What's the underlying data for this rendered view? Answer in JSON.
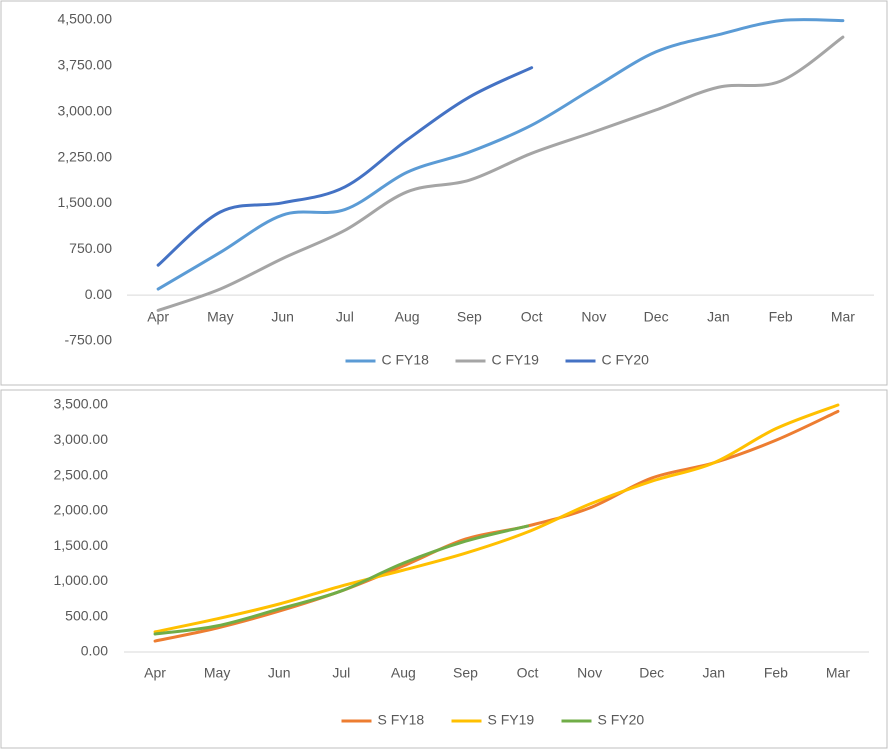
{
  "chart_data": [
    {
      "type": "line",
      "categories": [
        "Apr",
        "May",
        "Jun",
        "Jul",
        "Aug",
        "Sep",
        "Oct",
        "Nov",
        "Dec",
        "Jan",
        "Feb",
        "Mar"
      ],
      "series": [
        {
          "name": "C FY18",
          "color": "#5b9bd5",
          "values": [
            100,
            700,
            1310,
            1400,
            2010,
            2340,
            2780,
            3390,
            3980,
            4260,
            4490,
            4490
          ]
        },
        {
          "name": "C FY19",
          "color": "#a5a5a5",
          "values": [
            -250,
            100,
            600,
            1060,
            1690,
            1880,
            2320,
            2670,
            3030,
            3400,
            3500,
            4220
          ]
        },
        {
          "name": "C FY20",
          "color": "#4472c4",
          "values": [
            490,
            1360,
            1510,
            1770,
            2540,
            3240,
            3720,
            null,
            null,
            null,
            null,
            null
          ]
        }
      ],
      "ylim": [
        -750,
        4500
      ],
      "yticks": [
        {
          "value": -750,
          "label": "-750.00"
        },
        {
          "value": 0,
          "label": "0.00"
        },
        {
          "value": 750,
          "label": "750.00"
        },
        {
          "value": 1500,
          "label": "1,500.00"
        },
        {
          "value": 2250,
          "label": "2,250.00"
        },
        {
          "value": 3000,
          "label": "3,000.00"
        },
        {
          "value": 3750,
          "label": "3,750.00"
        },
        {
          "value": 4500,
          "label": "4,500.00"
        }
      ],
      "legend": "bottom"
    },
    {
      "type": "line",
      "categories": [
        "Apr",
        "May",
        "Jun",
        "Jul",
        "Aug",
        "Sep",
        "Oct",
        "Nov",
        "Dec",
        "Jan",
        "Feb",
        "Mar"
      ],
      "series": [
        {
          "name": "S FY18",
          "color": "#ed7d31",
          "values": [
            155,
            340,
            580,
            865,
            1220,
            1600,
            1785,
            2040,
            2465,
            2680,
            3000,
            3410
          ]
        },
        {
          "name": "S FY19",
          "color": "#ffc000",
          "values": [
            285,
            470,
            680,
            935,
            1160,
            1400,
            1700,
            2095,
            2420,
            2680,
            3165,
            3500
          ]
        },
        {
          "name": "S FY20",
          "color": "#70ad47",
          "values": [
            255,
            370,
            610,
            865,
            1260,
            1570,
            1785,
            null,
            null,
            null,
            null,
            null
          ]
        }
      ],
      "ylim": [
        0,
        3500
      ],
      "yticks": [
        {
          "value": 0,
          "label": "0.00"
        },
        {
          "value": 500,
          "label": "500.00"
        },
        {
          "value": 1000,
          "label": "1,000.00"
        },
        {
          "value": 1500,
          "label": "1,500.00"
        },
        {
          "value": 2000,
          "label": "2,000.00"
        },
        {
          "value": 2500,
          "label": "2,500.00"
        },
        {
          "value": 3000,
          "label": "3,000.00"
        },
        {
          "value": 3500,
          "label": "3,500.00"
        }
      ],
      "legend": "bottom"
    }
  ]
}
